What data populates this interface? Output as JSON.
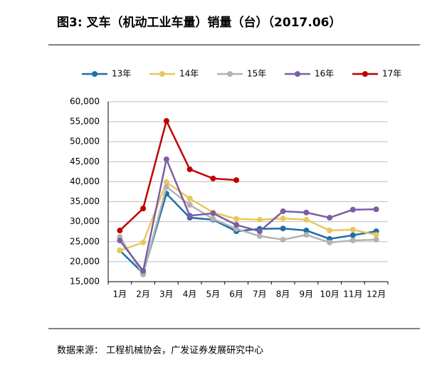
{
  "chart_data": {
    "type": "line",
    "title": "图3:  叉车（机动工业车量）销量（台）（2017.06）",
    "source": "数据来源：  工程机械协会，广发证券发展研究中心",
    "categories": [
      "1月",
      "2月",
      "3月",
      "4月",
      "5月",
      "6月",
      "7月",
      "8月",
      "9月",
      "10月",
      "11月",
      "12月"
    ],
    "series": [
      {
        "name": "13年",
        "color": "#1f6fa8",
        "values": [
          22800,
          17100,
          37000,
          31000,
          30500,
          27600,
          28200,
          28300,
          27800,
          25700,
          26600,
          27600
        ]
      },
      {
        "name": "14年",
        "color": "#e9c85a",
        "values": [
          22800,
          24800,
          39900,
          35800,
          32300,
          30700,
          30500,
          30800,
          30500,
          27800,
          28000,
          26700
        ]
      },
      {
        "name": "15年",
        "color": "#b3b3b3",
        "values": [
          26200,
          16800,
          38700,
          34200,
          30700,
          28200,
          26400,
          25500,
          26700,
          24800,
          25300,
          25500
        ]
      },
      {
        "name": "16年",
        "color": "#7b5ea7",
        "values": [
          25300,
          17700,
          45600,
          31500,
          32100,
          29200,
          27600,
          32600,
          32300,
          31000,
          33000,
          33100
        ]
      },
      {
        "name": "17年",
        "color": "#c00000",
        "values": [
          27800,
          33300,
          55200,
          43100,
          40800,
          40400,
          null,
          null,
          null,
          null,
          null,
          null
        ]
      }
    ],
    "ylim": [
      15000,
      60000
    ],
    "yticks": [
      {
        "value": 15000,
        "label": "15,000"
      },
      {
        "value": 20000,
        "label": "20,000"
      },
      {
        "value": 25000,
        "label": "25,000"
      },
      {
        "value": 30000,
        "label": "30,000"
      },
      {
        "value": 35000,
        "label": "35,000"
      },
      {
        "value": 40000,
        "label": "40,000"
      },
      {
        "value": 45000,
        "label": "45,000"
      },
      {
        "value": 50000,
        "label": "50,000"
      },
      {
        "value": 55000,
        "label": "55,000"
      },
      {
        "value": 60000,
        "label": "60,000"
      }
    ],
    "grid": true,
    "legend": "top"
  }
}
